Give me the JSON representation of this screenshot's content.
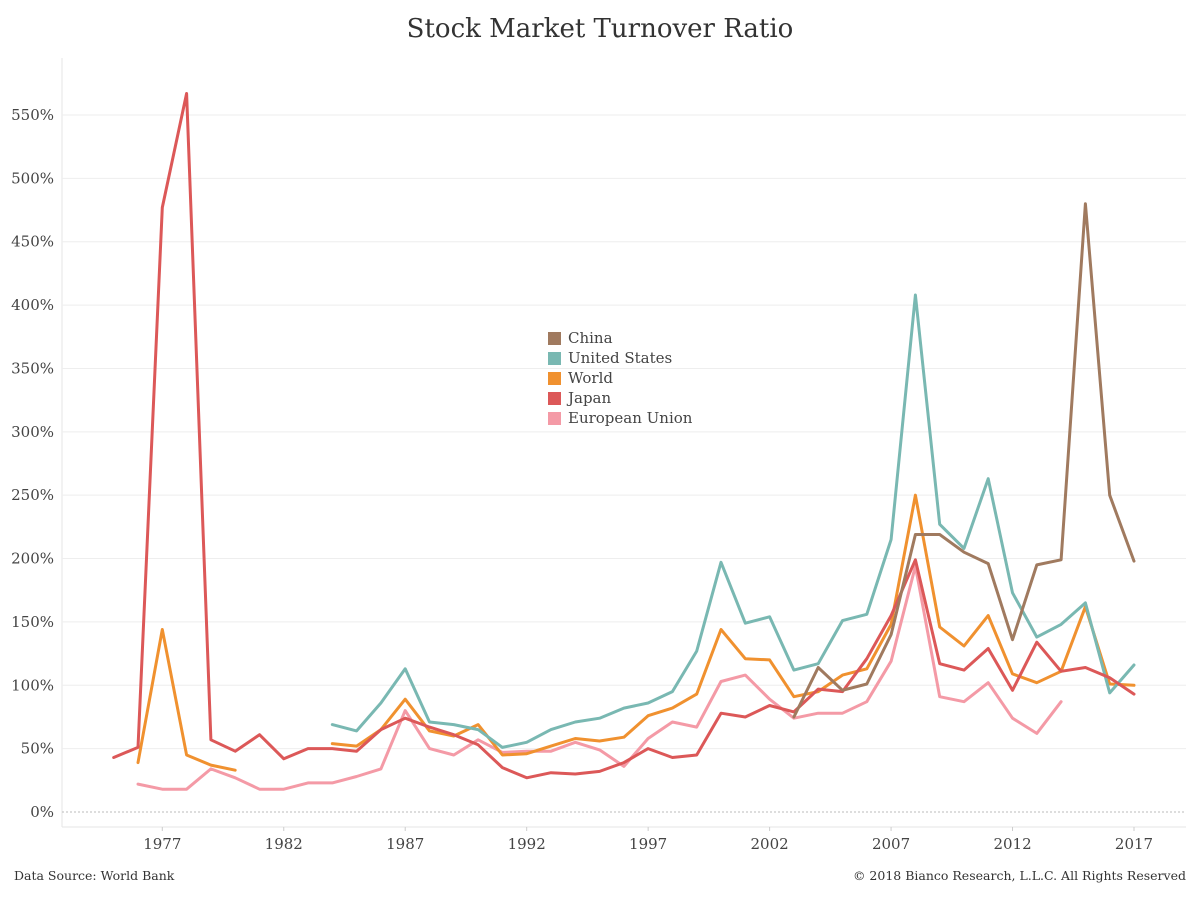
{
  "title": "Stock Market Turnover Ratio",
  "footer": {
    "source": "Data Source: World Bank",
    "copyright": "© 2018 Bianco Research, L.L.C. All Rights Reserved"
  },
  "chart_data": {
    "type": "line",
    "title": "Stock Market Turnover Ratio",
    "xlabel": "",
    "ylabel": "",
    "xlim": [
      1972.5,
      2018.5
    ],
    "ylim": [
      0,
      580
    ],
    "x_ticks": [
      1977,
      1982,
      1987,
      1992,
      1997,
      2002,
      2007,
      2012,
      2017
    ],
    "y_ticks": [
      0,
      50,
      100,
      150,
      200,
      250,
      300,
      350,
      400,
      450,
      500,
      550
    ],
    "y_tick_format": "%",
    "grid": true,
    "legend_position": "center",
    "series": [
      {
        "name": "China",
        "color": "#a07a5f",
        "points": [
          [
            2003,
            75
          ],
          [
            2004,
            114
          ],
          [
            2005,
            96
          ],
          [
            2006,
            101
          ],
          [
            2007,
            140
          ],
          [
            2008,
            219
          ],
          [
            2009,
            219
          ],
          [
            2010,
            205
          ],
          [
            2011,
            196
          ],
          [
            2012,
            136
          ],
          [
            2013,
            195
          ],
          [
            2014,
            199
          ],
          [
            2015,
            480
          ],
          [
            2016,
            250
          ],
          [
            2017,
            198
          ]
        ]
      },
      {
        "name": "United States",
        "color": "#79b8b2",
        "points": [
          [
            1984,
            69
          ],
          [
            1985,
            64
          ],
          [
            1986,
            86
          ],
          [
            1987,
            113
          ],
          [
            1988,
            71
          ],
          [
            1989,
            69
          ],
          [
            1990,
            65
          ],
          [
            1991,
            51
          ],
          [
            1992,
            55
          ],
          [
            1993,
            65
          ],
          [
            1994,
            71
          ],
          [
            1995,
            74
          ],
          [
            1996,
            82
          ],
          [
            1997,
            86
          ],
          [
            1998,
            95
          ],
          [
            1999,
            127
          ],
          [
            2000,
            197
          ],
          [
            2001,
            149
          ],
          [
            2002,
            154
          ],
          [
            2003,
            112
          ],
          [
            2004,
            117
          ],
          [
            2005,
            151
          ],
          [
            2006,
            156
          ],
          [
            2007,
            215
          ],
          [
            2008,
            408
          ],
          [
            2009,
            227
          ],
          [
            2010,
            208
          ],
          [
            2011,
            263
          ],
          [
            2012,
            173
          ],
          [
            2013,
            138
          ],
          [
            2014,
            148
          ],
          [
            2015,
            165
          ],
          [
            2016,
            94
          ],
          [
            2017,
            116
          ]
        ]
      },
      {
        "name": "World",
        "color": "#f0912f",
        "points": [
          [
            1976,
            39
          ],
          [
            1977,
            144
          ],
          [
            1978,
            45
          ],
          [
            1979,
            37
          ],
          [
            1980,
            33
          ],
          [
            null,
            null
          ],
          [
            1984,
            54
          ],
          [
            1985,
            52
          ],
          [
            1986,
            65
          ],
          [
            1987,
            89
          ],
          [
            1988,
            64
          ],
          [
            1989,
            60
          ],
          [
            1990,
            69
          ],
          [
            1991,
            45
          ],
          [
            1992,
            46
          ],
          [
            1993,
            52
          ],
          [
            1994,
            58
          ],
          [
            1995,
            56
          ],
          [
            1996,
            59
          ],
          [
            1997,
            76
          ],
          [
            1998,
            82
          ],
          [
            1999,
            93
          ],
          [
            2000,
            144
          ],
          [
            2001,
            121
          ],
          [
            2002,
            120
          ],
          [
            2003,
            91
          ],
          [
            2004,
            95
          ],
          [
            2005,
            108
          ],
          [
            2006,
            113
          ],
          [
            2007,
            148
          ],
          [
            2008,
            250
          ],
          [
            2009,
            146
          ],
          [
            2010,
            131
          ],
          [
            2011,
            155
          ],
          [
            2012,
            109
          ],
          [
            2013,
            102
          ],
          [
            2014,
            111
          ],
          [
            2015,
            162
          ],
          [
            2016,
            101
          ],
          [
            2017,
            100
          ]
        ]
      },
      {
        "name": "Japan",
        "color": "#dc5858",
        "points": [
          [
            1975,
            43
          ],
          [
            1976,
            51
          ],
          [
            1977,
            477
          ],
          [
            1978,
            567
          ],
          [
            1979,
            57
          ],
          [
            1980,
            48
          ],
          [
            1981,
            61
          ],
          [
            1982,
            42
          ],
          [
            1983,
            50
          ],
          [
            1984,
            50
          ],
          [
            1985,
            48
          ],
          [
            1986,
            65
          ],
          [
            1987,
            74
          ],
          [
            1988,
            67
          ],
          [
            1989,
            61
          ],
          [
            1990,
            53
          ],
          [
            1991,
            35
          ],
          [
            1992,
            27
          ],
          [
            1993,
            31
          ],
          [
            1994,
            30
          ],
          [
            1995,
            32
          ],
          [
            1996,
            39
          ],
          [
            1997,
            50
          ],
          [
            1998,
            43
          ],
          [
            1999,
            45
          ],
          [
            2000,
            78
          ],
          [
            2001,
            75
          ],
          [
            2002,
            84
          ],
          [
            2003,
            79
          ],
          [
            2004,
            97
          ],
          [
            2005,
            95
          ],
          [
            2006,
            121
          ],
          [
            2007,
            155
          ],
          [
            2008,
            199
          ],
          [
            2009,
            117
          ],
          [
            2010,
            112
          ],
          [
            2011,
            129
          ],
          [
            2012,
            96
          ],
          [
            2013,
            134
          ],
          [
            2014,
            111
          ],
          [
            2015,
            114
          ],
          [
            2016,
            106
          ],
          [
            2017,
            93
          ]
        ]
      },
      {
        "name": "European Union",
        "color": "#f49aa6",
        "points": [
          [
            1976,
            22
          ],
          [
            1977,
            18
          ],
          [
            1978,
            18
          ],
          [
            1979,
            34
          ],
          [
            1980,
            27
          ],
          [
            1981,
            18
          ],
          [
            1982,
            18
          ],
          [
            1983,
            23
          ],
          [
            1984,
            23
          ],
          [
            1985,
            28
          ],
          [
            1986,
            34
          ],
          [
            1987,
            80
          ],
          [
            1988,
            50
          ],
          [
            1989,
            45
          ],
          [
            1990,
            57
          ],
          [
            1991,
            47
          ],
          [
            1992,
            48
          ],
          [
            1993,
            48
          ],
          [
            1994,
            55
          ],
          [
            1995,
            49
          ],
          [
            1996,
            36
          ],
          [
            1997,
            58
          ],
          [
            1998,
            71
          ],
          [
            1999,
            67
          ],
          [
            2000,
            103
          ],
          [
            2001,
            108
          ],
          [
            2002,
            89
          ],
          [
            2003,
            74
          ],
          [
            2004,
            78
          ],
          [
            2005,
            78
          ],
          [
            2006,
            87
          ],
          [
            2007,
            119
          ],
          [
            2008,
            194
          ],
          [
            2009,
            91
          ],
          [
            2010,
            87
          ],
          [
            2011,
            102
          ],
          [
            2012,
            74
          ],
          [
            2013,
            62
          ],
          [
            2014,
            87
          ]
        ]
      }
    ]
  }
}
